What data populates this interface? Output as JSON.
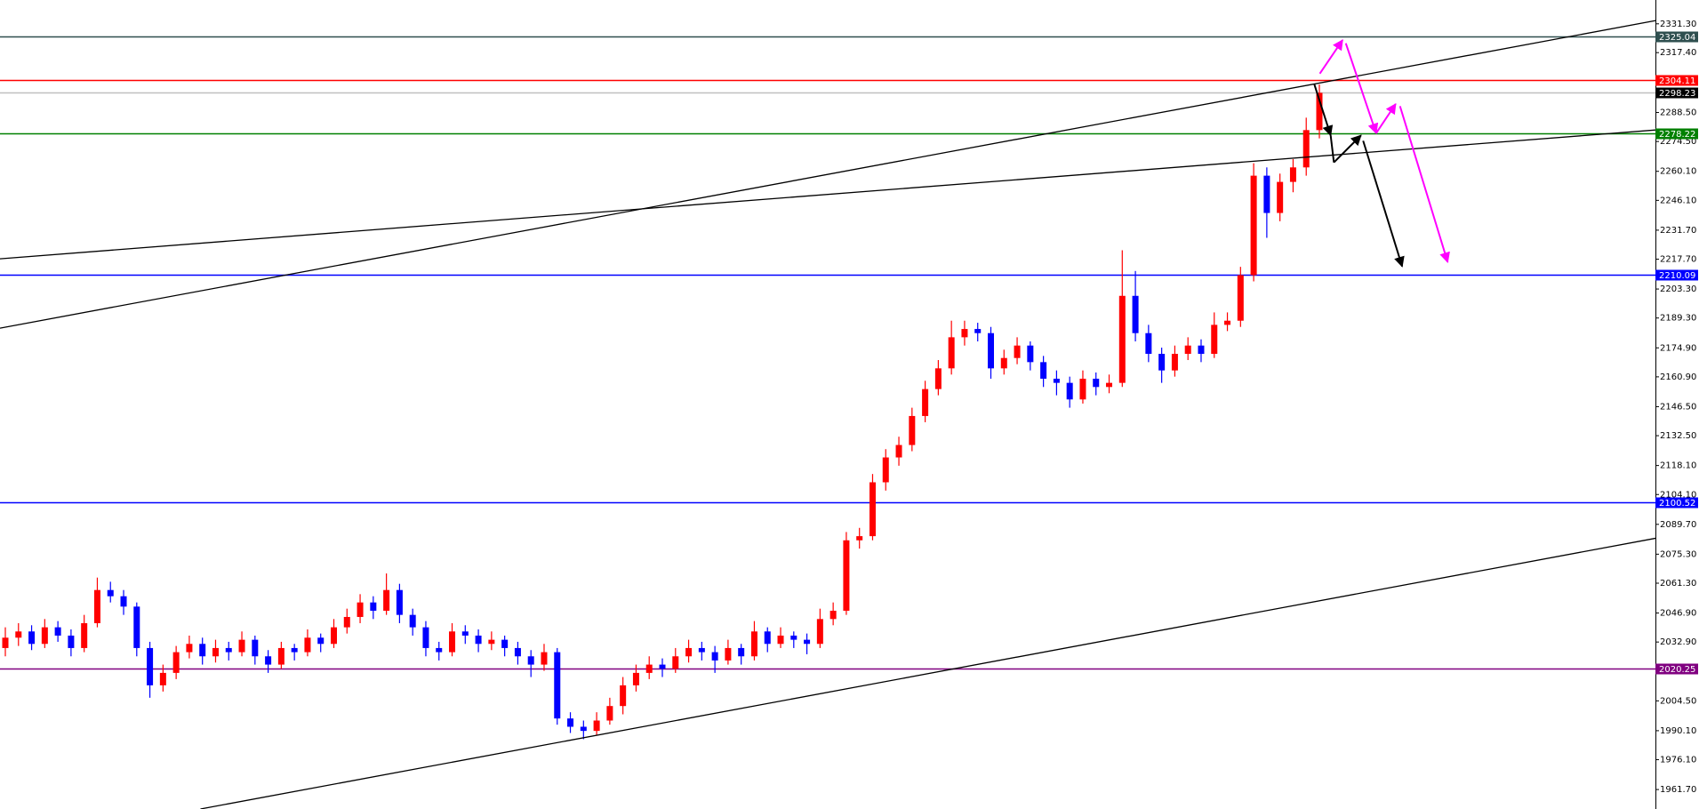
{
  "chart_data": {
    "type": "candlestick",
    "up_color": "#ff0000",
    "down_color": "#0000ff",
    "ylim": [
      1952.3,
      2342.8
    ],
    "yticks": [
      {
        "value": 2331.3,
        "label": "2331.30"
      },
      {
        "value": 2317.4,
        "label": "2317.40"
      },
      {
        "value": 2288.5,
        "label": "2288.50"
      },
      {
        "value": 2274.5,
        "label": "2274.50"
      },
      {
        "value": 2260.1,
        "label": "2260.10"
      },
      {
        "value": 2246.1,
        "label": "2246.10"
      },
      {
        "value": 2231.7,
        "label": "2231.70"
      },
      {
        "value": 2217.7,
        "label": "2217.70"
      },
      {
        "value": 2203.3,
        "label": "2203.30"
      },
      {
        "value": 2189.3,
        "label": "2189.30"
      },
      {
        "value": 2174.9,
        "label": "2174.90"
      },
      {
        "value": 2160.9,
        "label": "2160.90"
      },
      {
        "value": 2146.5,
        "label": "2146.50"
      },
      {
        "value": 2132.5,
        "label": "2132.50"
      },
      {
        "value": 2118.1,
        "label": "2118.10"
      },
      {
        "value": 2104.1,
        "label": "2104.10"
      },
      {
        "value": 2089.7,
        "label": "2089.70"
      },
      {
        "value": 2075.3,
        "label": "2075.30"
      },
      {
        "value": 2061.3,
        "label": "2061.30"
      },
      {
        "value": 2046.9,
        "label": "2046.90"
      },
      {
        "value": 2032.9,
        "label": "2032.90"
      },
      {
        "value": 2018.5,
        "label": "2018.50"
      },
      {
        "value": 2004.5,
        "label": "2004.50"
      },
      {
        "value": 1990.1,
        "label": "1990.10"
      },
      {
        "value": 1976.1,
        "label": "1976.10"
      },
      {
        "value": 1961.7,
        "label": "1961.70"
      }
    ],
    "price_lines": [
      {
        "value": 2325.04,
        "color": "#2f4f4f"
      },
      {
        "value": 2304.11,
        "color": "#ff0000"
      },
      {
        "value": 2298.23,
        "color": "#000000",
        "line_color": "#c0c0c0"
      },
      {
        "value": 2278.22,
        "color": "#008000"
      },
      {
        "value": 2210.09,
        "color": "#0000ff"
      },
      {
        "value": 2100.52,
        "color": "#0000ff"
      },
      {
        "value": 2020.25,
        "color": "#800080"
      }
    ],
    "ohlc": [
      [
        2030,
        2040,
        2026,
        2035
      ],
      [
        2035,
        2042,
        2031,
        2038
      ],
      [
        2038,
        2041,
        2029,
        2032
      ],
      [
        2032,
        2044,
        2030,
        2040
      ],
      [
        2040,
        2043,
        2033,
        2036
      ],
      [
        2036,
        2039,
        2026,
        2030
      ],
      [
        2030,
        2046,
        2028,
        2042
      ],
      [
        2042,
        2064,
        2040,
        2058
      ],
      [
        2058,
        2062,
        2052,
        2055
      ],
      [
        2055,
        2058,
        2046,
        2050
      ],
      [
        2050,
        2052,
        2026,
        2030
      ],
      [
        2030,
        2033,
        2006,
        2012
      ],
      [
        2012,
        2022,
        2009,
        2018
      ],
      [
        2018,
        2031,
        2015,
        2028
      ],
      [
        2028,
        2036,
        2025,
        2032
      ],
      [
        2032,
        2035,
        2022,
        2026
      ],
      [
        2026,
        2034,
        2023,
        2030
      ],
      [
        2030,
        2033,
        2024,
        2028
      ],
      [
        2028,
        2038,
        2026,
        2034
      ],
      [
        2034,
        2036,
        2022,
        2026
      ],
      [
        2026,
        2029,
        2018,
        2022
      ],
      [
        2022,
        2033,
        2020,
        2030
      ],
      [
        2030,
        2032,
        2024,
        2028
      ],
      [
        2028,
        2039,
        2026,
        2035
      ],
      [
        2035,
        2037,
        2028,
        2032
      ],
      [
        2032,
        2044,
        2030,
        2040
      ],
      [
        2040,
        2049,
        2037,
        2045
      ],
      [
        2045,
        2056,
        2042,
        2052
      ],
      [
        2052,
        2055,
        2044,
        2048
      ],
      [
        2048,
        2066,
        2046,
        2058
      ],
      [
        2058,
        2061,
        2042,
        2046
      ],
      [
        2046,
        2049,
        2036,
        2040
      ],
      [
        2040,
        2043,
        2026,
        2030
      ],
      [
        2030,
        2033,
        2024,
        2028
      ],
      [
        2028,
        2042,
        2026,
        2038
      ],
      [
        2038,
        2041,
        2032,
        2036
      ],
      [
        2036,
        2039,
        2028,
        2032
      ],
      [
        2032,
        2038,
        2029,
        2034
      ],
      [
        2034,
        2036,
        2026,
        2030
      ],
      [
        2030,
        2033,
        2022,
        2026
      ],
      [
        2026,
        2029,
        2016,
        2022
      ],
      [
        2022,
        2032,
        2019,
        2028
      ],
      [
        2028,
        2030,
        1993,
        1996
      ],
      [
        1996,
        1999,
        1989,
        1992
      ],
      [
        1992,
        1995,
        1986,
        1990
      ],
      [
        1990,
        1999,
        1988,
        1995
      ],
      [
        1995,
        2006,
        1993,
        2002
      ],
      [
        2002,
        2016,
        1998,
        2012
      ],
      [
        2012,
        2022,
        2009,
        2018
      ],
      [
        2018,
        2026,
        2015,
        2022
      ],
      [
        2022,
        2025,
        2016,
        2020
      ],
      [
        2020,
        2030,
        2018,
        2026
      ],
      [
        2026,
        2034,
        2023,
        2030
      ],
      [
        2030,
        2033,
        2024,
        2028
      ],
      [
        2028,
        2031,
        2018,
        2024
      ],
      [
        2024,
        2034,
        2022,
        2030
      ],
      [
        2030,
        2032,
        2022,
        2026
      ],
      [
        2026,
        2043,
        2024,
        2038
      ],
      [
        2038,
        2040,
        2028,
        2032
      ],
      [
        2032,
        2040,
        2030,
        2036
      ],
      [
        2036,
        2038,
        2030,
        2034
      ],
      [
        2034,
        2037,
        2027,
        2032
      ],
      [
        2032,
        2049,
        2030,
        2044
      ],
      [
        2044,
        2052,
        2041,
        2048
      ],
      [
        2048,
        2086,
        2046,
        2082
      ],
      [
        2082,
        2088,
        2078,
        2084
      ],
      [
        2084,
        2114,
        2082,
        2110
      ],
      [
        2110,
        2126,
        2106,
        2122
      ],
      [
        2122,
        2132,
        2118,
        2128
      ],
      [
        2128,
        2146,
        2125,
        2142
      ],
      [
        2142,
        2159,
        2139,
        2155
      ],
      [
        2155,
        2169,
        2152,
        2165
      ],
      [
        2165,
        2188,
        2162,
        2180
      ],
      [
        2180,
        2188,
        2176,
        2184
      ],
      [
        2184,
        2187,
        2178,
        2182
      ],
      [
        2182,
        2185,
        2160,
        2165
      ],
      [
        2165,
        2174,
        2162,
        2170
      ],
      [
        2170,
        2180,
        2167,
        2176
      ],
      [
        2176,
        2178,
        2164,
        2168
      ],
      [
        2168,
        2171,
        2156,
        2160
      ],
      [
        2160,
        2164,
        2152,
        2158
      ],
      [
        2158,
        2161,
        2146,
        2150
      ],
      [
        2150,
        2164,
        2148,
        2160
      ],
      [
        2160,
        2163,
        2152,
        2156
      ],
      [
        2156,
        2162,
        2153,
        2158
      ],
      [
        2158,
        2222,
        2156,
        2200
      ],
      [
        2200,
        2212,
        2178,
        2182
      ],
      [
        2182,
        2186,
        2168,
        2172
      ],
      [
        2172,
        2175,
        2158,
        2164
      ],
      [
        2164,
        2176,
        2161,
        2172
      ],
      [
        2172,
        2180,
        2169,
        2176
      ],
      [
        2176,
        2179,
        2168,
        2172
      ],
      [
        2172,
        2192,
        2170,
        2186
      ],
      [
        2186,
        2192,
        2183,
        2188
      ],
      [
        2188,
        2214,
        2185,
        2210
      ],
      [
        2210,
        2264,
        2207,
        2258
      ],
      [
        2258,
        2262,
        2228,
        2240
      ],
      [
        2240,
        2259,
        2236,
        2255
      ],
      [
        2255,
        2266,
        2250,
        2262
      ],
      [
        2262,
        2286,
        2258,
        2280
      ],
      [
        2280,
        2302,
        2276,
        2298
      ]
    ]
  }
}
